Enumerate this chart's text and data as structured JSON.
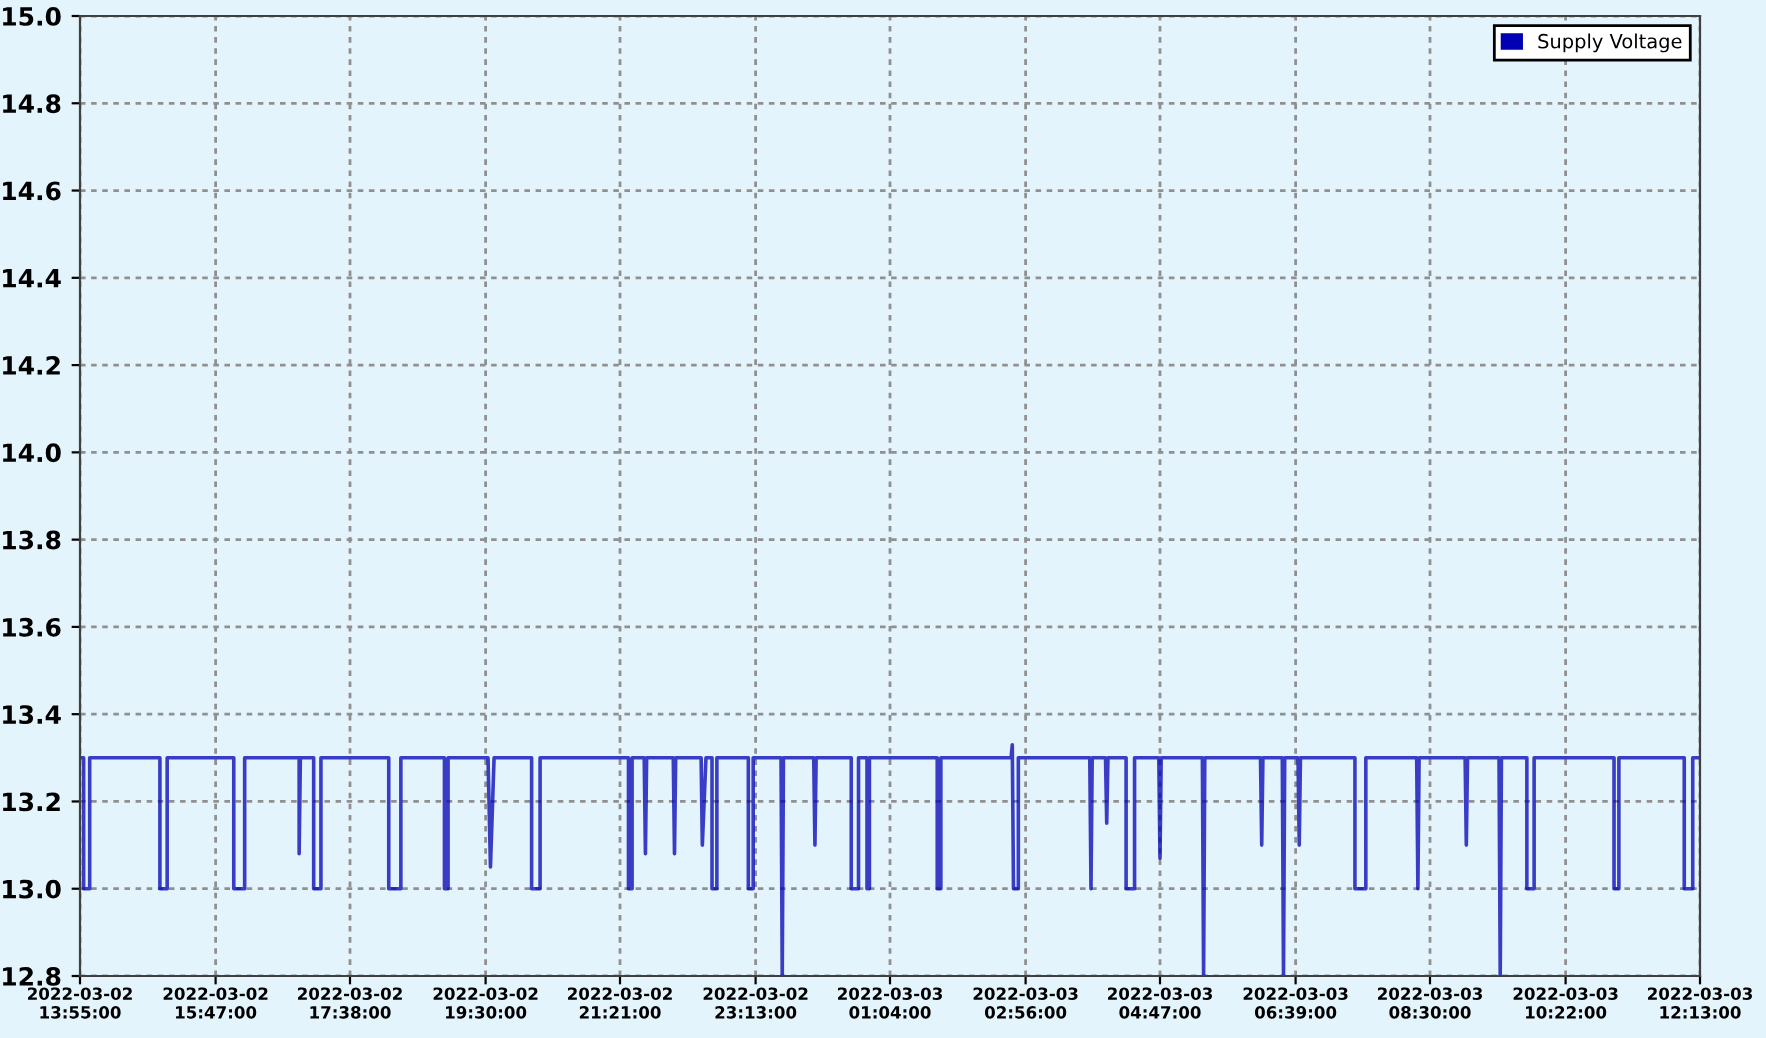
{
  "chart_data": {
    "type": "line",
    "x": [
      "2022-03-02T13:55",
      "2022-03-02T13:58",
      "2022-03-02T13:58",
      "2022-03-02T14:03",
      "2022-03-02T14:03",
      "2022-03-02T15:01",
      "2022-03-02T15:01",
      "2022-03-02T15:07",
      "2022-03-02T15:07",
      "2022-03-02T16:02",
      "2022-03-02T16:02",
      "2022-03-02T16:11",
      "2022-03-02T16:11",
      "2022-03-02T16:56",
      "2022-03-02T16:56",
      "2022-03-02T16:57",
      "2022-03-02T17:08",
      "2022-03-02T17:08",
      "2022-03-02T17:14",
      "2022-03-02T17:14",
      "2022-03-02T18:10",
      "2022-03-02T18:10",
      "2022-03-02T18:20",
      "2022-03-02T18:20",
      "2022-03-02T18:56",
      "2022-03-02T18:56",
      "2022-03-02T18:59",
      "2022-03-02T18:59",
      "2022-03-02T19:32",
      "2022-03-02T19:34",
      "2022-03-02T19:37",
      "2022-03-02T20:08",
      "2022-03-02T20:08",
      "2022-03-02T20:15",
      "2022-03-02T20:15",
      "2022-03-02T21:28",
      "2022-03-02T21:28",
      "2022-03-02T21:31",
      "2022-03-02T21:31",
      "2022-03-02T21:41",
      "2022-03-02T21:42",
      "2022-03-02T21:43",
      "2022-03-02T22:05",
      "2022-03-02T22:06",
      "2022-03-02T22:07",
      "2022-03-02T22:28",
      "2022-03-02T22:29",
      "2022-03-02T22:32",
      "2022-03-02T22:37",
      "2022-03-02T22:37",
      "2022-03-02T22:41",
      "2022-03-02T22:41",
      "2022-03-02T23:07",
      "2022-03-02T23:07",
      "2022-03-02T23:11",
      "2022-03-02T23:11",
      "2022-03-02T23:34",
      "2022-03-02T23:35",
      "2022-03-02T23:36",
      "2022-03-03T00:01",
      "2022-03-03T00:02",
      "2022-03-03T00:03",
      "2022-03-03T00:32",
      "2022-03-03T00:32",
      "2022-03-03T00:38",
      "2022-03-03T00:38",
      "2022-03-03T00:45",
      "2022-03-03T00:45",
      "2022-03-03T00:47",
      "2022-03-03T00:47",
      "2022-03-03T01:43",
      "2022-03-03T01:43",
      "2022-03-03T01:46",
      "2022-03-03T01:46",
      "2022-03-03T02:44",
      "2022-03-03T02:45",
      "2022-03-03T02:46",
      "2022-03-03T02:50",
      "2022-03-03T02:50",
      "2022-03-03T03:49",
      "2022-03-03T03:50",
      "2022-03-03T03:51",
      "2022-03-03T04:02",
      "2022-03-03T04:03",
      "2022-03-03T04:04",
      "2022-03-03T04:19",
      "2022-03-03T04:19",
      "2022-03-03T04:26",
      "2022-03-03T04:26",
      "2022-03-03T04:46",
      "2022-03-03T04:47",
      "2022-03-03T04:48",
      "2022-03-03T05:22",
      "2022-03-03T05:23",
      "2022-03-03T05:24",
      "2022-03-03T06:10",
      "2022-03-03T06:11",
      "2022-03-03T06:12",
      "2022-03-03T06:28",
      "2022-03-03T06:29",
      "2022-03-03T06:30",
      "2022-03-03T06:41",
      "2022-03-03T06:42",
      "2022-03-03T06:43",
      "2022-03-03T07:28",
      "2022-03-03T07:28",
      "2022-03-03T07:37",
      "2022-03-03T07:37",
      "2022-03-03T08:19",
      "2022-03-03T08:20",
      "2022-03-03T08:21",
      "2022-03-03T08:59",
      "2022-03-03T09:00",
      "2022-03-03T09:01",
      "2022-03-03T09:27",
      "2022-03-03T09:28",
      "2022-03-03T09:29",
      "2022-03-03T09:50",
      "2022-03-03T09:50",
      "2022-03-03T09:56",
      "2022-03-03T09:56",
      "2022-03-03T11:02",
      "2022-03-03T11:02",
      "2022-03-03T11:06",
      "2022-03-03T11:06",
      "2022-03-03T12:00",
      "2022-03-03T12:00",
      "2022-03-03T12:07",
      "2022-03-03T12:07",
      "2022-03-03T12:13"
    ],
    "series": [
      {
        "name": "Supply Voltage",
        "color": "#0000b4",
        "values": [
          13.3,
          13.3,
          13.0,
          13.0,
          13.3,
          13.3,
          13.0,
          13.0,
          13.3,
          13.3,
          13.0,
          13.0,
          13.3,
          13.3,
          13.08,
          13.3,
          13.3,
          13.0,
          13.0,
          13.3,
          13.3,
          13.0,
          13.0,
          13.3,
          13.3,
          13.0,
          13.0,
          13.3,
          13.3,
          13.05,
          13.3,
          13.3,
          13.0,
          13.0,
          13.3,
          13.3,
          13.0,
          13.0,
          13.3,
          13.3,
          13.08,
          13.3,
          13.3,
          13.08,
          13.3,
          13.3,
          13.1,
          13.3,
          13.3,
          13.0,
          13.0,
          13.3,
          13.3,
          13.0,
          13.0,
          13.3,
          13.3,
          12.8,
          13.3,
          13.3,
          13.1,
          13.3,
          13.3,
          13.0,
          13.0,
          13.3,
          13.3,
          13.0,
          13.0,
          13.3,
          13.3,
          13.0,
          13.0,
          13.3,
          13.3,
          13.33,
          13.0,
          13.0,
          13.3,
          13.3,
          13.0,
          13.3,
          13.3,
          13.15,
          13.3,
          13.3,
          13.0,
          13.0,
          13.3,
          13.3,
          13.07,
          13.3,
          13.3,
          12.8,
          13.3,
          13.3,
          13.1,
          13.3,
          13.3,
          12.8,
          13.3,
          13.3,
          13.1,
          13.3,
          13.3,
          13.0,
          13.0,
          13.3,
          13.3,
          13.0,
          13.3,
          13.3,
          13.1,
          13.3,
          13.3,
          12.8,
          13.3,
          13.3,
          13.0,
          13.0,
          13.3,
          13.3,
          13.0,
          13.0,
          13.3,
          13.3,
          13.0,
          13.0,
          13.3,
          13.3
        ]
      }
    ],
    "xlim": [
      "2022-03-02T13:55",
      "2022-03-03T12:13"
    ],
    "xticks": [
      {
        "value": "2022-03-02T13:55",
        "label": "2022-03-02\n13:55:00"
      },
      {
        "value": "2022-03-02T15:47",
        "label": "2022-03-02\n15:47:00"
      },
      {
        "value": "2022-03-02T17:38",
        "label": "2022-03-02\n17:38:00"
      },
      {
        "value": "2022-03-02T19:30",
        "label": "2022-03-02\n19:30:00"
      },
      {
        "value": "2022-03-02T21:21",
        "label": "2022-03-02\n21:21:00"
      },
      {
        "value": "2022-03-02T23:13",
        "label": "2022-03-02\n23:13:00"
      },
      {
        "value": "2022-03-03T01:04",
        "label": "2022-03-03\n01:04:00"
      },
      {
        "value": "2022-03-03T02:56",
        "label": "2022-03-03\n02:56:00"
      },
      {
        "value": "2022-03-03T04:47",
        "label": "2022-03-03\n04:47:00"
      },
      {
        "value": "2022-03-03T06:39",
        "label": "2022-03-03\n06:39:00"
      },
      {
        "value": "2022-03-03T08:30",
        "label": "2022-03-03\n08:30:00"
      },
      {
        "value": "2022-03-03T10:22",
        "label": "2022-03-03\n10:22:00"
      },
      {
        "value": "2022-03-03T12:13",
        "label": "2022-03-03\n12:13:00"
      }
    ],
    "ylim": [
      12.8,
      15.0
    ],
    "yticks": [
      12.8,
      {
        "value": 13.0,
        "label": "13.0"
      },
      13.2,
      13.4,
      13.6,
      13.8,
      {
        "value": 14.0,
        "label": "14.0"
      },
      14.2,
      14.4,
      14.6,
      14.8,
      {
        "value": 15.0,
        "label": "15.0"
      }
    ],
    "grid": true,
    "legend": "top right",
    "line_style": "solid",
    "marker": "none"
  }
}
